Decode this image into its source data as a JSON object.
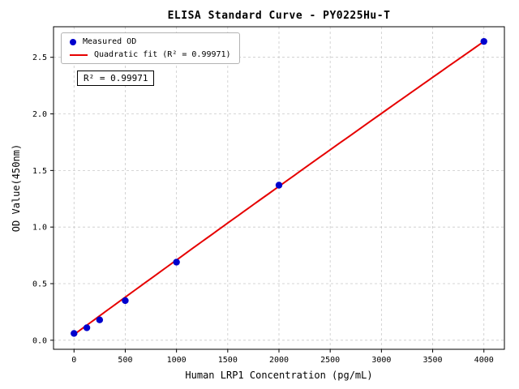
{
  "chart_data": {
    "type": "scatter",
    "title": "ELISA Standard Curve - PY0225Hu-T",
    "xlabel": "Human LRP1 Concentration (pg/mL)",
    "ylabel": "OD Value(450nm)",
    "xlim": [
      -200,
      4200
    ],
    "ylim": [
      -0.08,
      2.77
    ],
    "xticks": [
      0,
      500,
      1000,
      1500,
      2000,
      2500,
      3000,
      3500,
      4000
    ],
    "xtick_labels": [
      "0",
      "500",
      "1000",
      "1500",
      "2000",
      "2500",
      "3000",
      "3500",
      "4000"
    ],
    "yticks": [
      0.0,
      0.5,
      1.0,
      1.5,
      2.0,
      2.5
    ],
    "ytick_labels": [
      "0.0",
      "0.5",
      "1.0",
      "1.5",
      "2.0",
      "2.5"
    ],
    "grid": true,
    "grid_style": "dashed",
    "legend_position": "upper-left",
    "series": [
      {
        "name": "Measured OD",
        "type": "scatter",
        "color": "#0000cd",
        "x": [
          0,
          125,
          250,
          500,
          1000,
          2000,
          4000
        ],
        "y": [
          0.06,
          0.11,
          0.18,
          0.35,
          0.69,
          1.37,
          2.64
        ]
      },
      {
        "name": "Quadratic fit (R² = 0.99971)",
        "type": "line",
        "color": "#e60000",
        "fit": {
          "a": 0.05,
          "b": 0.0006625,
          "c": -3.75e-09,
          "x_start": 0,
          "x_end": 4000
        }
      }
    ],
    "annotation": "R² = 0.99971",
    "r_squared": 0.99971
  }
}
